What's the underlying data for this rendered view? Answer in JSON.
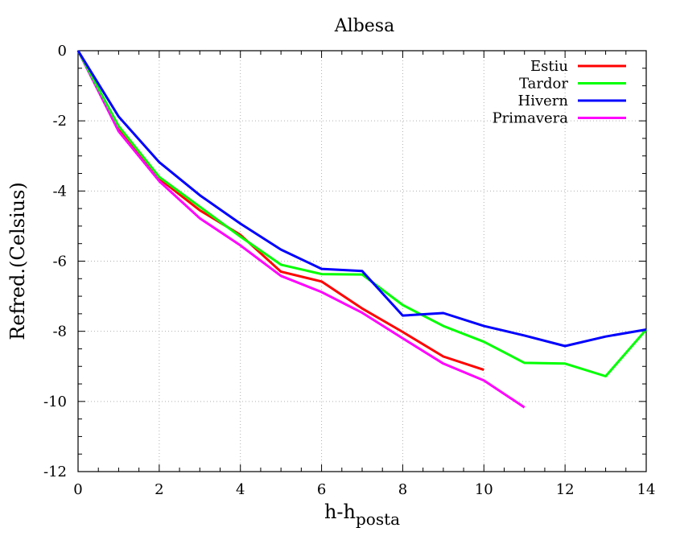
{
  "chart_data": {
    "type": "line",
    "title": "Albesa",
    "xlabel": "h-h",
    "xlabel_subscript": "posta",
    "ylabel": "Refred.(Celsius)",
    "xlim": [
      0,
      14
    ],
    "ylim": [
      -12,
      0
    ],
    "xticks": [
      0,
      2,
      4,
      6,
      8,
      10,
      12,
      14
    ],
    "yticks": [
      0,
      -2,
      -4,
      -6,
      -8,
      -10,
      -12
    ],
    "grid": true,
    "legend_position": "top-right",
    "series": [
      {
        "name": "Estiu",
        "color": "#ff0000",
        "x": [
          0,
          1,
          2,
          3,
          4,
          5,
          6,
          7,
          8,
          9,
          10
        ],
        "y": [
          0,
          -2.25,
          -3.65,
          -4.55,
          -5.25,
          -6.3,
          -6.58,
          -7.35,
          -8.02,
          -8.72,
          -9.1
        ]
      },
      {
        "name": "Tardor",
        "color": "#00ff00",
        "x": [
          0,
          1,
          2,
          3,
          4,
          5,
          6,
          7,
          8,
          9,
          10,
          11,
          12,
          13,
          14
        ],
        "y": [
          0,
          -2.15,
          -3.6,
          -4.45,
          -5.3,
          -6.1,
          -6.37,
          -6.38,
          -7.25,
          -7.85,
          -8.3,
          -8.9,
          -8.92,
          -9.28,
          -7.95
        ]
      },
      {
        "name": "Hivern",
        "color": "#0000ff",
        "x": [
          0,
          1,
          2,
          3,
          4,
          5,
          6,
          7,
          8,
          9,
          10,
          11,
          12,
          13,
          14
        ],
        "y": [
          0,
          -1.88,
          -3.18,
          -4.12,
          -4.93,
          -5.67,
          -6.22,
          -6.28,
          -7.55,
          -7.48,
          -7.85,
          -8.12,
          -8.42,
          -8.15,
          -7.95
        ]
      },
      {
        "name": "Primavera",
        "color": "#ff00ff",
        "x": [
          0,
          1,
          2,
          3,
          4,
          5,
          6,
          7,
          8,
          9,
          10,
          11
        ],
        "y": [
          0,
          -2.3,
          -3.72,
          -4.78,
          -5.55,
          -6.42,
          -6.88,
          -7.47,
          -8.2,
          -8.92,
          -9.4,
          -10.17
        ]
      }
    ]
  }
}
